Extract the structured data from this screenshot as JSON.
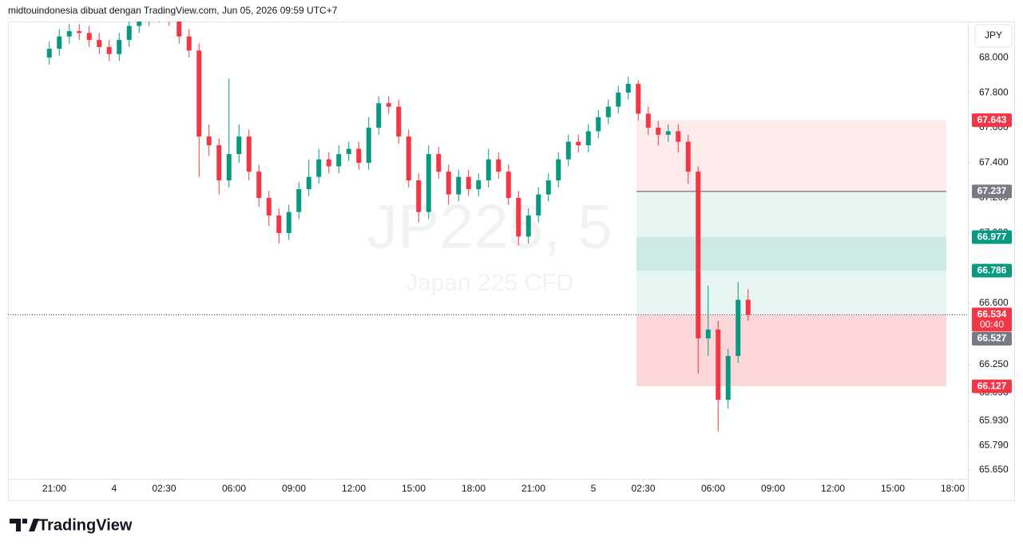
{
  "header": "midtouindonesia dibuat dengan TradingView.com, Jun 05, 2026 09:59 UTC+7",
  "footer_logo": "TradingView",
  "chart_data": {
    "type": "candlestick",
    "watermark_symbol": "JP225, 5",
    "watermark_name": "Japan 225 CFD",
    "currency": "JPY",
    "up_color": "#089981",
    "down_color": "#f23645",
    "x": [
      -0.25,
      0.25,
      0.75,
      1.25,
      1.75,
      2.25,
      2.75,
      3.25,
      3.75,
      4.25,
      4.75,
      5.25,
      5.75,
      6.25,
      6.75,
      7.25,
      7.75,
      8.25,
      8.75,
      9.25,
      9.75,
      10.25,
      10.75,
      11.25,
      11.75,
      12.25,
      12.75,
      13.25,
      13.75,
      14.25,
      14.75,
      15.25,
      15.75,
      16.25,
      16.75,
      17.25,
      17.75,
      18.25,
      18.75,
      19.25,
      19.75,
      20.25,
      20.75,
      21.25,
      21.75,
      22.25,
      22.75,
      23.25,
      23.75,
      24.25,
      24.75,
      25.25,
      25.75,
      26.25,
      26.75,
      27.25,
      27.75,
      28.25,
      28.75,
      29.25,
      29.75,
      30.25,
      30.75,
      31.25,
      31.75,
      32.25,
      32.75,
      33.25,
      33.75,
      34.25,
      34.75
    ],
    "open": [
      68.0,
      68.05,
      68.12,
      68.15,
      68.14,
      68.1,
      68.06,
      68.02,
      68.1,
      68.18,
      68.22,
      68.24,
      68.25,
      68.22,
      68.12,
      68.04,
      67.55,
      67.5,
      67.3,
      67.45,
      67.55,
      67.35,
      67.2,
      67.1,
      67.0,
      67.12,
      67.25,
      67.32,
      67.42,
      67.38,
      67.45,
      67.48,
      67.4,
      67.6,
      67.74,
      67.72,
      67.55,
      67.3,
      67.12,
      67.45,
      67.35,
      67.22,
      67.32,
      67.25,
      67.3,
      67.42,
      67.35,
      67.2,
      66.98,
      67.1,
      67.22,
      67.3,
      67.42,
      67.52,
      67.5,
      67.58,
      67.66,
      67.72,
      67.8,
      67.85,
      67.68,
      67.6,
      67.56,
      67.58,
      67.52,
      67.35,
      66.4,
      66.45,
      66.05,
      66.3,
      66.62
    ],
    "high": [
      68.09,
      68.16,
      68.19,
      68.19,
      68.18,
      68.14,
      68.1,
      68.14,
      68.22,
      68.26,
      68.28,
      68.29,
      68.29,
      68.26,
      68.16,
      68.08,
      67.62,
      67.54,
      67.88,
      67.62,
      67.59,
      67.39,
      67.24,
      67.14,
      67.16,
      67.29,
      67.42,
      67.48,
      67.46,
      67.5,
      67.52,
      67.52,
      67.66,
      67.78,
      67.78,
      67.76,
      67.59,
      67.34,
      67.5,
      67.49,
      67.39,
      67.36,
      67.36,
      67.34,
      67.48,
      67.46,
      67.39,
      67.24,
      67.14,
      67.26,
      67.34,
      67.46,
      67.56,
      67.56,
      67.62,
      67.7,
      67.76,
      67.84,
      67.89,
      67.87,
      67.72,
      67.64,
      67.62,
      67.62,
      67.56,
      67.38,
      66.7,
      66.5,
      66.34,
      66.72,
      66.68
    ],
    "low": [
      67.96,
      68.01,
      68.08,
      68.1,
      68.06,
      68.02,
      67.98,
      67.98,
      68.06,
      68.14,
      68.18,
      68.2,
      68.18,
      68.08,
      68.0,
      67.32,
      67.44,
      67.22,
      67.26,
      67.4,
      67.3,
      67.15,
      67.04,
      66.94,
      66.96,
      67.08,
      67.21,
      67.28,
      67.34,
      67.34,
      67.41,
      67.36,
      67.36,
      67.56,
      67.68,
      67.51,
      67.26,
      67.06,
      67.08,
      67.31,
      67.16,
      67.18,
      67.21,
      67.21,
      67.26,
      67.31,
      67.16,
      66.93,
      66.94,
      67.06,
      67.18,
      67.26,
      67.38,
      67.46,
      67.46,
      67.54,
      67.62,
      67.68,
      67.76,
      67.64,
      67.56,
      67.5,
      67.52,
      67.46,
      67.28,
      66.2,
      66.3,
      65.87,
      66.0,
      66.26,
      66.5
    ],
    "close": [
      68.05,
      68.12,
      68.15,
      68.14,
      68.1,
      68.06,
      68.02,
      68.1,
      68.18,
      68.22,
      68.24,
      68.25,
      68.22,
      68.12,
      68.04,
      67.55,
      67.5,
      67.3,
      67.45,
      67.55,
      67.35,
      67.2,
      67.1,
      67.0,
      67.12,
      67.25,
      67.32,
      67.42,
      67.38,
      67.45,
      67.48,
      67.4,
      67.6,
      67.74,
      67.72,
      67.55,
      67.3,
      67.12,
      67.45,
      67.35,
      67.22,
      67.32,
      67.25,
      67.3,
      67.42,
      67.35,
      67.2,
      66.98,
      67.1,
      67.22,
      67.3,
      67.42,
      67.52,
      67.5,
      67.58,
      67.66,
      67.72,
      67.8,
      67.85,
      67.68,
      67.6,
      67.56,
      67.58,
      67.52,
      67.35,
      66.4,
      66.45,
      66.05,
      66.3,
      66.62,
      66.534
    ],
    "xlim": [
      -2.32,
      45.76
    ],
    "ylim": [
      65.6,
      68.205
    ],
    "xticks": [
      {
        "value": 0,
        "label": "21:00"
      },
      {
        "value": 3,
        "label": "4"
      },
      {
        "value": 5.5,
        "label": "02:30"
      },
      {
        "value": 9,
        "label": "06:00"
      },
      {
        "value": 12,
        "label": "09:00"
      },
      {
        "value": 15,
        "label": "12:00"
      },
      {
        "value": 18,
        "label": "15:00"
      },
      {
        "value": 21,
        "label": "18:00"
      },
      {
        "value": 24,
        "label": "21:00"
      },
      {
        "value": 27,
        "label": "5"
      },
      {
        "value": 29.5,
        "label": "02:30"
      },
      {
        "value": 33,
        "label": "06:00"
      },
      {
        "value": 36,
        "label": "09:00"
      },
      {
        "value": 39,
        "label": "12:00"
      },
      {
        "value": 42,
        "label": "15:00"
      },
      {
        "value": 45,
        "label": "18:00"
      }
    ],
    "yticks": [
      {
        "value": 68,
        "label": "68.000"
      },
      {
        "value": 67.8,
        "label": "67.800"
      },
      {
        "value": 67.6,
        "label": "67.600"
      },
      {
        "value": 67.4,
        "label": "67.400"
      },
      {
        "value": 67.2,
        "label": "67.200"
      },
      {
        "value": 67,
        "label": "67.000"
      },
      {
        "value": 66.6,
        "label": "66.600"
      },
      {
        "value": 66.25,
        "label": "66.250"
      },
      {
        "value": 66.09,
        "label": "66.090"
      },
      {
        "value": 65.93,
        "label": "65.930"
      },
      {
        "value": 65.79,
        "label": "65.790"
      },
      {
        "value": 65.65,
        "label": "65.650"
      }
    ],
    "position_x": [
      29.16,
      44.68
    ],
    "zones": [
      {
        "top": 67.643,
        "bottom": 67.237,
        "color": "rgba(242,54,69,0.1)"
      },
      {
        "top": 67.237,
        "bottom": 66.534,
        "color": "rgba(8,153,129,0.1)"
      },
      {
        "top": 66.977,
        "bottom": 66.786,
        "color": "rgba(8,153,129,0.12)"
      },
      {
        "top": 66.534,
        "bottom": 66.127,
        "color": "rgba(242,54,69,0.2)"
      }
    ],
    "entry_line": 67.237,
    "price_labels": [
      {
        "value": 67.643,
        "color": "#f23645"
      },
      {
        "value": 67.237,
        "color": "#787b86"
      },
      {
        "value": 66.977,
        "color": "#089981"
      },
      {
        "value": 66.786,
        "color": "#089981"
      },
      {
        "value": 66.527,
        "color": "#787b86"
      },
      {
        "value": 66.127,
        "color": "#f23645"
      }
    ],
    "current_price": {
      "value": 66.534,
      "countdown": "00:40",
      "color": "#f23645"
    }
  }
}
